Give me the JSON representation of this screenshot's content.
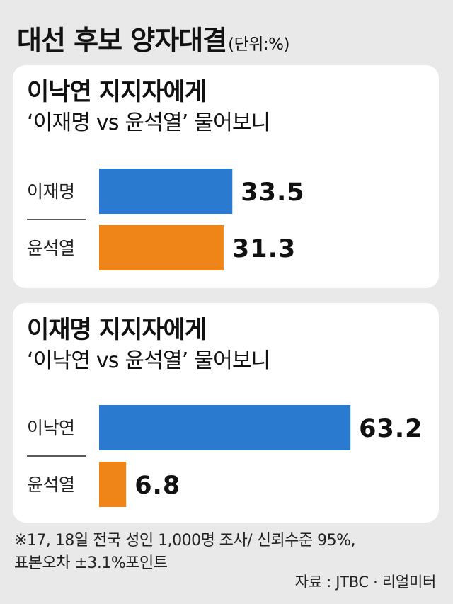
{
  "title": "대선 후보 양자대결",
  "unit": "(단위:%)",
  "chart_data": [
    {
      "type": "bar",
      "title": "이낙연 지지자에게",
      "subtitle": "‘이재명 vs 윤석열’ 물어보니",
      "categories": [
        "이재명",
        "윤석열"
      ],
      "values": [
        33.5,
        31.3
      ],
      "value_labels": [
        "33.5",
        "31.3"
      ],
      "colors": [
        "#2a7bd0",
        "#ef8419"
      ],
      "xlim": [
        0,
        70
      ]
    },
    {
      "type": "bar",
      "title": "이재명 지지자에게",
      "subtitle": "‘이낙연 vs 윤석열’ 물어보니",
      "categories": [
        "이낙연",
        "윤석열"
      ],
      "values": [
        63.2,
        6.8
      ],
      "value_labels": [
        "63.2",
        "6.8"
      ],
      "colors": [
        "#2a7bd0",
        "#ef8419"
      ],
      "xlim": [
        0,
        70
      ]
    }
  ],
  "footnote": {
    "line1": "※17, 18일 전국 성인 1,000명 조사/ 신뢰수준 95%,",
    "line2": "표본오차 ±3.1%포인트"
  },
  "source": "자료 : JTBC · 리얼미터"
}
